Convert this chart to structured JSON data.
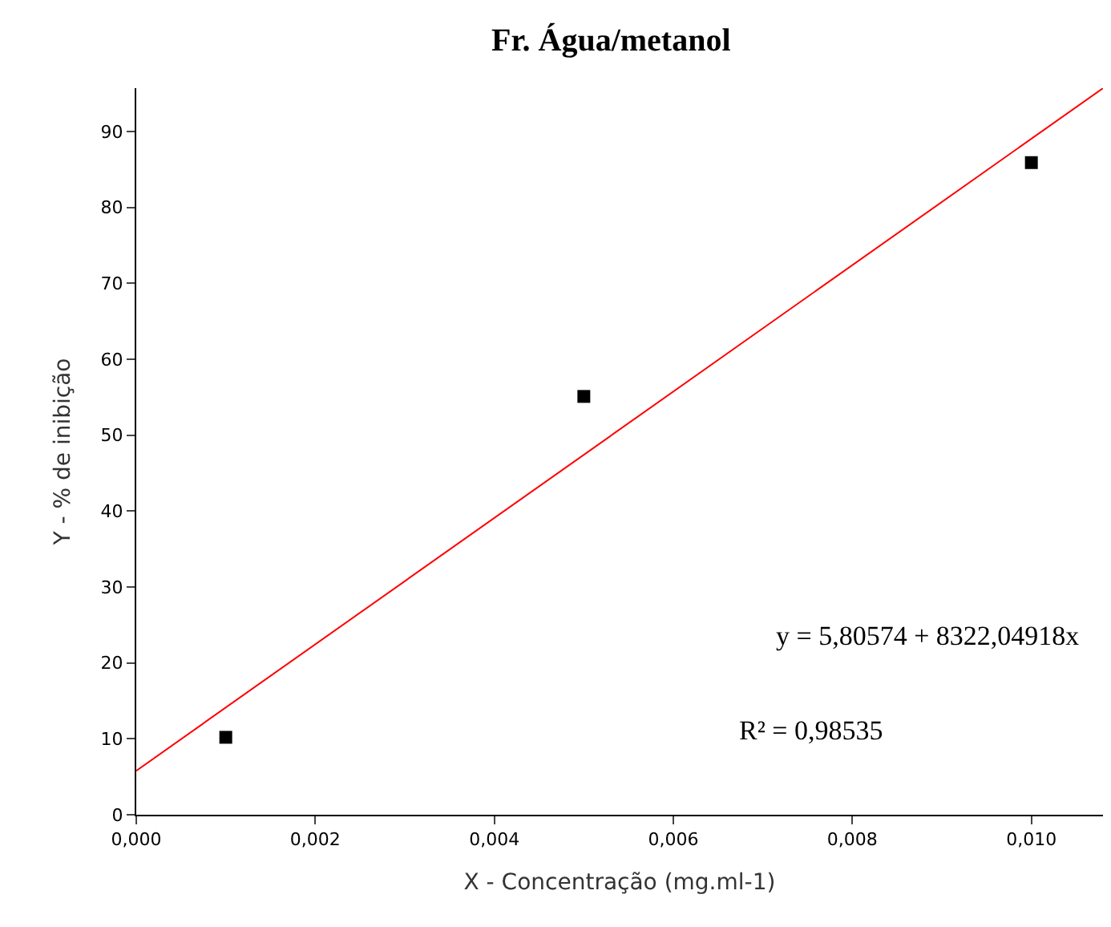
{
  "chart_data": {
    "type": "scatter",
    "title": "Fr. Água/metanol",
    "xlabel": "X - Concentração (mg.ml-1)",
    "ylabel": "Y - % de inibição",
    "series": [
      {
        "color": "#000000",
        "marker": "square",
        "x": [
          0.001,
          0.005,
          0.01
        ],
        "values": [
          10.2,
          55.1,
          85.9
        ]
      },
      {
        "type": "line",
        "color": "#ff0000",
        "marker": "none",
        "line_style": "solid",
        "x": [
          0,
          0.0108
        ],
        "values": [
          5.8,
          95.7
        ]
      }
    ],
    "xlim": [
      0,
      0.0108
    ],
    "xticks": [
      {
        "value": 0,
        "label": "0,000"
      },
      {
        "value": 0.002,
        "label": "0,002"
      },
      {
        "value": 0.004,
        "label": "0,004"
      },
      {
        "value": 0.006,
        "label": "0,006"
      },
      {
        "value": 0.008,
        "label": "0,008"
      },
      {
        "value": 0.01,
        "label": "0,010"
      }
    ],
    "ylim": [
      0,
      95.7
    ],
    "yticks": [
      0,
      10,
      20,
      30,
      40,
      50,
      60,
      70,
      80,
      90
    ],
    "annotations": [
      "y = 5,80574 + 8322,04918x",
      "R² = 0,98535"
    ]
  }
}
